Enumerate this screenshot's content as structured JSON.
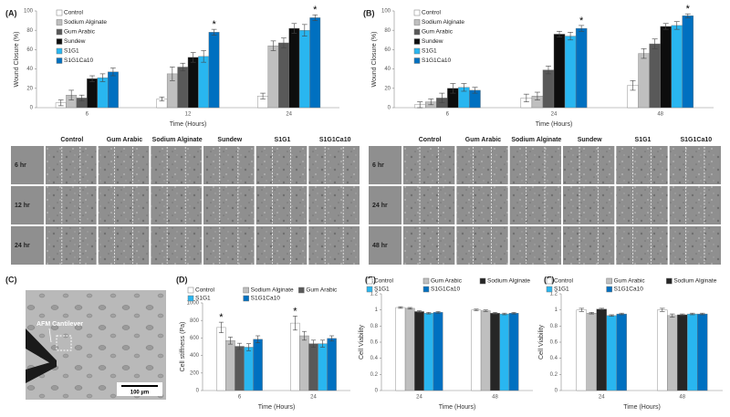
{
  "chart_data": [
    {
      "type": "bar",
      "panel": "(A)",
      "ylabel": "Wound Closure (%)",
      "xlabel": "Time (Hours)",
      "legend": "upper left",
      "categories": [
        "6",
        "12",
        "24"
      ],
      "ylim": [
        0,
        100
      ],
      "yticks": [
        0,
        20,
        40,
        60,
        80,
        100
      ],
      "series": [
        {
          "name": "Control",
          "color": "#ffffff",
          "values": [
            5,
            9,
            12
          ],
          "errors": [
            3,
            2,
            3
          ]
        },
        {
          "name": "Sodium Alginate",
          "color": "#bfbfbf",
          "values": [
            13,
            35,
            64
          ],
          "errors": [
            5,
            7,
            5
          ]
        },
        {
          "name": "Gum Arabic",
          "color": "#595959",
          "values": [
            10,
            42,
            67
          ],
          "errors": [
            3,
            4,
            5
          ]
        },
        {
          "name": "Sundew",
          "color": "#0d0d0d",
          "values": [
            30,
            52,
            82
          ],
          "errors": [
            3,
            5,
            5
          ]
        },
        {
          "name": "S1G1",
          "color": "#29b6f0",
          "values": [
            31,
            53,
            80
          ],
          "errors": [
            4,
            6,
            6
          ]
        },
        {
          "name": "S1G1Ca10",
          "color": "#0070c0",
          "values": [
            37,
            78,
            93
          ],
          "errors": [
            4,
            3,
            3
          ],
          "value_labels": [
            null,
            "*",
            "*"
          ]
        }
      ]
    },
    {
      "type": "bar",
      "panel": "(B)",
      "ylabel": "Wound Closure (%)",
      "xlabel": "Time (Hours)",
      "legend": "upper left",
      "categories": [
        "6",
        "24",
        "48"
      ],
      "ylim": [
        0,
        100
      ],
      "yticks": [
        0,
        20,
        40,
        60,
        80,
        100
      ],
      "series": [
        {
          "name": "Control",
          "color": "#ffffff",
          "values": [
            3,
            10,
            23
          ],
          "errors": [
            3,
            4,
            5
          ]
        },
        {
          "name": "Sodium Alginate",
          "color": "#bfbfbf",
          "values": [
            6,
            12,
            56
          ],
          "errors": [
            3,
            4,
            5
          ]
        },
        {
          "name": "Gum Arabic",
          "color": "#595959",
          "values": [
            10,
            39,
            66
          ],
          "errors": [
            5,
            4,
            5
          ]
        },
        {
          "name": "Sundew",
          "color": "#0d0d0d",
          "values": [
            20,
            76,
            84
          ],
          "errors": [
            5,
            3,
            3
          ]
        },
        {
          "name": "S1G1",
          "color": "#29b6f0",
          "values": [
            21,
            74,
            85
          ],
          "errors": [
            4,
            4,
            4
          ]
        },
        {
          "name": "S1G1Ca10",
          "color": "#0070c0",
          "values": [
            18,
            82,
            95
          ],
          "errors": [
            3,
            3,
            2
          ],
          "value_labels": [
            null,
            "*",
            "*"
          ]
        }
      ]
    },
    {
      "type": "bar",
      "panel": "(D)",
      "ylabel": "Cell stiffness (Pa)",
      "xlabel": "Time (Hours)",
      "legend": "top",
      "categories": [
        "6",
        "24"
      ],
      "ylim": [
        0,
        1000
      ],
      "yticks": [
        0,
        200,
        400,
        600,
        800,
        1000
      ],
      "series": [
        {
          "name": "Control",
          "color": "#ffffff",
          "values": [
            720,
            770
          ],
          "errors": [
            60,
            80
          ],
          "value_labels": [
            "*",
            "*"
          ]
        },
        {
          "name": "Sodium Alginate",
          "color": "#bfbfbf",
          "values": [
            570,
            625
          ],
          "errors": [
            40,
            50
          ]
        },
        {
          "name": "Gum Arabic",
          "color": "#595959",
          "values": [
            505,
            535
          ],
          "errors": [
            35,
            40
          ]
        },
        {
          "name": "S1G1",
          "color": "#29b6f0",
          "values": [
            495,
            535
          ],
          "errors": [
            40,
            40
          ]
        },
        {
          "name": "S1G1Ca10",
          "color": "#0070c0",
          "values": [
            585,
            595
          ],
          "errors": [
            40,
            30
          ]
        }
      ]
    },
    {
      "type": "bar",
      "panel": "(E)",
      "ylabel": "Cell Viability",
      "xlabel": "Time (Hours)",
      "legend": "top",
      "categories": [
        "24",
        "48"
      ],
      "ylim": [
        0,
        1.2
      ],
      "yticks": [
        0,
        0.2,
        0.4,
        0.6,
        0.8,
        1,
        1.2
      ],
      "series": [
        {
          "name": "Control",
          "color": "#ffffff",
          "values": [
            1.03,
            1.0
          ],
          "errors": [
            0.01,
            0.01
          ]
        },
        {
          "name": "Gum Arabic",
          "color": "#bfbfbf",
          "values": [
            1.02,
            0.99
          ],
          "errors": [
            0.01,
            0.01
          ]
        },
        {
          "name": "Sodium Alginate",
          "color": "#262626",
          "values": [
            0.98,
            0.96
          ],
          "errors": [
            0.01,
            0.01
          ]
        },
        {
          "name": "S1G1",
          "color": "#29b6f0",
          "values": [
            0.96,
            0.95
          ],
          "errors": [
            0.01,
            0.01
          ]
        },
        {
          "name": "S1G1Ca10",
          "color": "#0070c0",
          "values": [
            0.97,
            0.96
          ],
          "errors": [
            0.01,
            0.01
          ]
        }
      ]
    },
    {
      "type": "bar",
      "panel": "(F)",
      "ylabel": "Cell Viability",
      "xlabel": "Time (Hours)",
      "legend": "top",
      "categories": [
        "24",
        "48"
      ],
      "ylim": [
        0,
        1.2
      ],
      "yticks": [
        0,
        0.2,
        0.4,
        0.6,
        0.8,
        1,
        1.2
      ],
      "series": [
        {
          "name": "Control",
          "color": "#ffffff",
          "values": [
            1.0,
            1.0
          ],
          "errors": [
            0.02,
            0.02
          ]
        },
        {
          "name": "Gum Arabic",
          "color": "#bfbfbf",
          "values": [
            0.96,
            0.93
          ],
          "errors": [
            0.01,
            0.02
          ]
        },
        {
          "name": "Sodium Alginate",
          "color": "#262626",
          "values": [
            1.01,
            0.94
          ],
          "errors": [
            0.01,
            0.01
          ]
        },
        {
          "name": "S1G1",
          "color": "#29b6f0",
          "values": [
            0.93,
            0.95
          ],
          "errors": [
            0.01,
            0.01
          ]
        },
        {
          "name": "S1G1Ca10",
          "color": "#0070c0",
          "values": [
            0.95,
            0.95
          ],
          "errors": [
            0.01,
            0.01
          ]
        }
      ]
    }
  ],
  "micrographs": [
    {
      "columns": [
        "Control",
        "Gum Arabic",
        "Sodium Alginate",
        "Sundew",
        "S1G1",
        "S1G1Ca10"
      ],
      "rows": [
        "6 hr",
        "12 hr",
        "24 hr"
      ]
    },
    {
      "columns": [
        "Control",
        "Gum Arabic",
        "Sodium Alginate",
        "Sundew",
        "S1G1",
        "S1G1Ca10"
      ],
      "rows": [
        "6 hr",
        "24 hr",
        "48 hr"
      ]
    }
  ],
  "afm_image": {
    "panel": "(C)",
    "annotation": "AFM Cantilever",
    "scale_bar": "100 µm"
  }
}
